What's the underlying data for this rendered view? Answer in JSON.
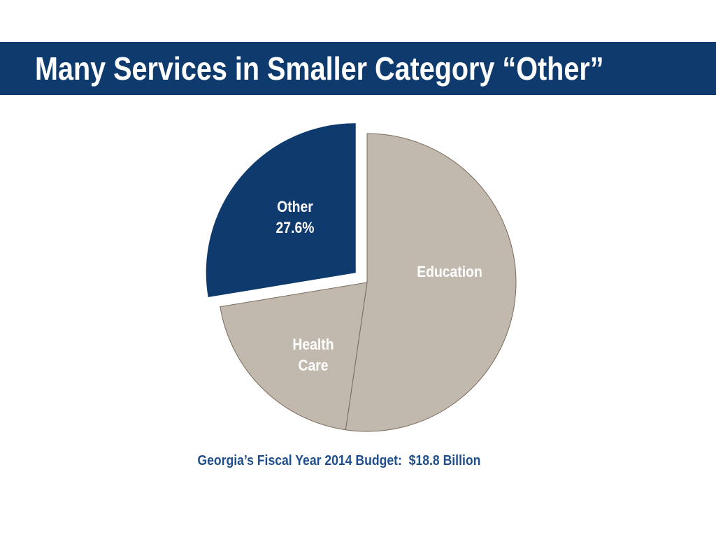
{
  "slide": {
    "title": "Many Services in Smaller Category “Other”",
    "caption": "Georgia’s Fiscal Year 2014 Budget:  $18.8 Billion"
  },
  "colors": {
    "title_bar": "#0e3a6e",
    "other": "#0e3a6e",
    "neutral": "#c1b9ad",
    "slice_stroke": "#7a6a5a",
    "caption": "#1f4e8c"
  },
  "chart_data": {
    "type": "pie",
    "title": "",
    "start_angle_deg": 0,
    "direction": "clockwise",
    "exploded": [
      "Other"
    ],
    "slices": [
      {
        "label": "Education",
        "display_label": "Education",
        "value": 52.3,
        "color": "#c1b9ad"
      },
      {
        "label": "Health Care",
        "display_label": "Health\nCare",
        "value": 20.1,
        "color": "#c1b9ad"
      },
      {
        "label": "Other",
        "display_label": "Other\n27.6%",
        "value": 27.6,
        "color": "#0e3a6e"
      }
    ]
  }
}
